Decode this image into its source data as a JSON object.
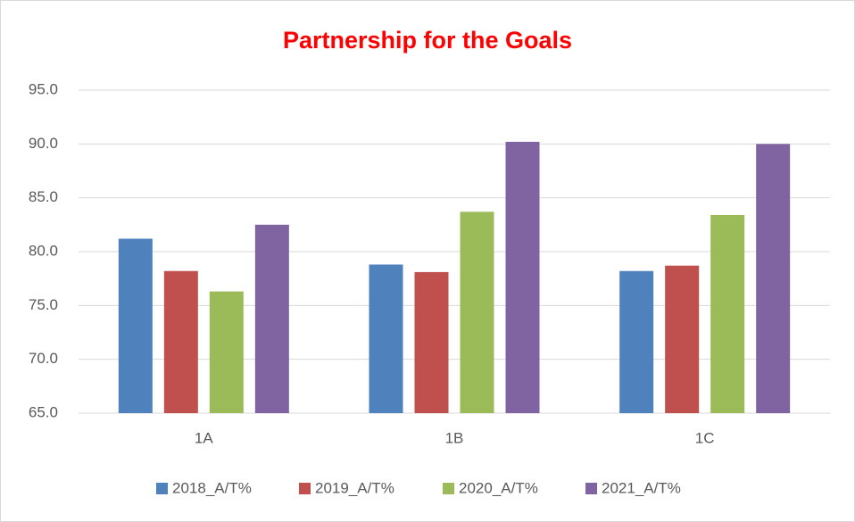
{
  "chart_data": {
    "type": "bar",
    "title": "Partnership for the Goals",
    "categories": [
      "1A",
      "1B",
      "1C"
    ],
    "series": [
      {
        "name": "2018_A/T%",
        "color": "#4f81bd",
        "values": [
          81.2,
          78.8,
          78.2
        ]
      },
      {
        "name": "2019_A/T%",
        "color": "#c0504d",
        "values": [
          78.2,
          78.1,
          78.7
        ]
      },
      {
        "name": "2020_A/T%",
        "color": "#9bbb59",
        "values": [
          76.3,
          83.7,
          83.4
        ]
      },
      {
        "name": "2021_A/T%",
        "color": "#8064a2",
        "values": [
          82.5,
          90.2,
          90.0
        ]
      }
    ],
    "ylim": [
      65,
      95
    ],
    "yticks": [
      {
        "value": 65,
        "label": "65.0"
      },
      {
        "value": 70,
        "label": "70.0"
      },
      {
        "value": 75,
        "label": "75.0"
      },
      {
        "value": 80,
        "label": "80.0"
      },
      {
        "value": 85,
        "label": "85.0"
      },
      {
        "value": 90,
        "label": "90.0"
      },
      {
        "value": 95,
        "label": "95.0"
      }
    ],
    "grid": true,
    "legend": "bottom"
  }
}
